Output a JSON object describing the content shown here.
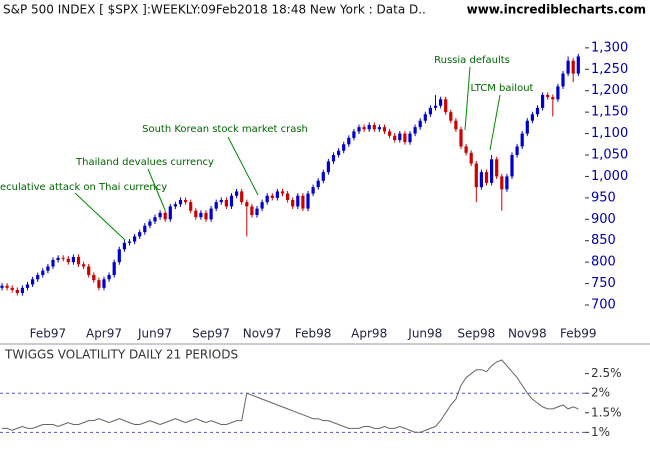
{
  "chart_data": [
    {
      "type": "candlestick",
      "title": "S&P 500 INDEX [ $SPX ]:WEEKLY:09Feb2018 18:48 New York : Data D..",
      "source": "www.incrediblecharts.com",
      "up_color": "#0000cc",
      "down_color": "#cc0000",
      "categories": [
        null,
        null,
        null,
        null,
        null,
        null,
        null,
        null,
        null,
        "Feb97",
        null,
        null,
        null,
        null,
        null,
        null,
        null,
        null,
        null,
        null,
        "Apr97",
        null,
        null,
        null,
        null,
        null,
        null,
        null,
        null,
        null,
        "Jun97",
        null,
        null,
        null,
        null,
        null,
        null,
        null,
        null,
        null,
        null,
        "Sep97",
        null,
        null,
        null,
        null,
        null,
        null,
        null,
        null,
        null,
        "Nov97",
        null,
        null,
        null,
        null,
        null,
        null,
        null,
        null,
        null,
        "Feb98",
        null,
        null,
        null,
        null,
        null,
        null,
        null,
        null,
        null,
        null,
        "Apr98",
        null,
        null,
        null,
        null,
        null,
        null,
        null,
        null,
        null,
        null,
        "Jun98",
        null,
        null,
        null,
        null,
        null,
        null,
        null,
        null,
        null,
        "Sep98",
        null,
        null,
        null,
        null,
        null,
        null,
        null,
        null,
        null,
        "Nov98",
        null,
        null,
        null,
        null,
        null,
        null,
        null,
        null,
        null,
        "Feb99"
      ],
      "open": [
        740,
        745,
        740,
        735,
        728,
        740,
        748,
        760,
        770,
        780,
        790,
        805,
        810,
        808,
        800,
        812,
        795,
        790,
        770,
        758,
        740,
        760,
        770,
        800,
        830,
        845,
        848,
        860,
        870,
        885,
        895,
        905,
        915,
        900,
        930,
        935,
        945,
        940,
        920,
        905,
        915,
        900,
        925,
        940,
        945,
        930,
        955,
        965,
        940,
        930,
        910,
        925,
        940,
        955,
        950,
        965,
        960,
        945,
        930,
        955,
        925,
        960,
        975,
        990,
        1010,
        1035,
        1050,
        1060,
        1075,
        1090,
        1105,
        1115,
        1110,
        1120,
        1110,
        1115,
        1105,
        1095,
        1085,
        1100,
        1080,
        1100,
        1115,
        1130,
        1145,
        1160,
        1165,
        1180,
        1150,
        1130,
        1110,
        1070,
        1055,
        1030,
        975,
        1010,
        985,
        1040,
        1000,
        970,
        1000,
        1050,
        1070,
        1100,
        1130,
        1145,
        1160,
        1190,
        1185,
        1180,
        1210,
        1240,
        1270,
        1240
      ],
      "high": [
        751,
        751,
        746,
        741,
        746,
        754,
        766,
        776,
        786,
        796,
        811,
        816,
        816,
        814,
        818,
        818,
        801,
        796,
        776,
        764,
        766,
        776,
        806,
        836,
        851,
        854,
        866,
        876,
        891,
        901,
        911,
        921,
        921,
        936,
        941,
        951,
        951,
        946,
        926,
        921,
        921,
        931,
        946,
        951,
        951,
        961,
        971,
        971,
        946,
        936,
        931,
        946,
        961,
        961,
        971,
        971,
        966,
        951,
        961,
        961,
        966,
        981,
        996,
        1016,
        1041,
        1056,
        1066,
        1081,
        1096,
        1111,
        1121,
        1121,
        1126,
        1126,
        1121,
        1121,
        1111,
        1101,
        1106,
        1106,
        1106,
        1121,
        1136,
        1151,
        1166,
        1190,
        1186,
        1186,
        1156,
        1136,
        1116,
        1076,
        1061,
        1036,
        1016,
        1016,
        1050,
        1046,
        1006,
        1006,
        1056,
        1076,
        1106,
        1136,
        1151,
        1166,
        1196,
        1196,
        1191,
        1216,
        1246,
        1280,
        1276,
        1286
      ],
      "low": [
        734,
        734,
        729,
        722,
        722,
        734,
        742,
        754,
        764,
        774,
        784,
        799,
        802,
        794,
        794,
        789,
        784,
        764,
        752,
        734,
        734,
        754,
        764,
        794,
        824,
        839,
        842,
        854,
        864,
        879,
        889,
        899,
        894,
        894,
        924,
        929,
        934,
        914,
        899,
        899,
        894,
        894,
        919,
        934,
        924,
        924,
        949,
        934,
        860,
        904,
        904,
        919,
        934,
        944,
        944,
        954,
        939,
        924,
        924,
        919,
        919,
        954,
        969,
        984,
        1004,
        1029,
        1044,
        1054,
        1069,
        1084,
        1099,
        1104,
        1104,
        1104,
        1104,
        1099,
        1089,
        1079,
        1079,
        1074,
        1074,
        1094,
        1109,
        1124,
        1139,
        1154,
        1159,
        1144,
        1124,
        1104,
        1064,
        1049,
        1024,
        940,
        969,
        979,
        979,
        994,
        920,
        964,
        994,
        1044,
        1064,
        1094,
        1124,
        1139,
        1154,
        1179,
        1140,
        1174,
        1204,
        1234,
        1220,
        1234
      ],
      "close": [
        745,
        740,
        735,
        728,
        740,
        748,
        760,
        770,
        780,
        790,
        805,
        810,
        808,
        800,
        812,
        795,
        790,
        770,
        758,
        740,
        760,
        770,
        800,
        830,
        845,
        848,
        860,
        870,
        885,
        895,
        905,
        915,
        900,
        930,
        935,
        945,
        940,
        920,
        905,
        915,
        900,
        925,
        940,
        945,
        930,
        955,
        965,
        940,
        930,
        910,
        925,
        940,
        955,
        950,
        965,
        960,
        945,
        930,
        955,
        925,
        960,
        975,
        990,
        1010,
        1035,
        1050,
        1060,
        1075,
        1090,
        1105,
        1115,
        1110,
        1120,
        1110,
        1115,
        1105,
        1095,
        1085,
        1100,
        1080,
        1100,
        1115,
        1130,
        1145,
        1160,
        1165,
        1180,
        1150,
        1130,
        1110,
        1070,
        1055,
        1030,
        975,
        1010,
        985,
        1040,
        1000,
        970,
        1000,
        1050,
        1070,
        1100,
        1130,
        1145,
        1160,
        1190,
        1185,
        1180,
        1210,
        1240,
        1270,
        1240,
        1280
      ],
      "ylim": [
        665,
        1365
      ],
      "yticks": [
        700,
        750,
        800,
        850,
        900,
        950,
        {
          "value": 1000,
          "label": "1,000"
        },
        {
          "value": 1050,
          "label": "1,050"
        },
        {
          "value": 1100,
          "label": "1,100"
        },
        {
          "value": 1150,
          "label": "1,150"
        },
        {
          "value": 1200,
          "label": "1,200"
        },
        {
          "value": 1250,
          "label": "1,250"
        },
        {
          "value": 1300,
          "label": "1,300"
        }
      ],
      "annotations": [
        {
          "text": "eculative attack on Thai currency"
        },
        {
          "text": "Thailand devalues currency"
        },
        {
          "text": "South Korean stock market crash"
        },
        {
          "text": "Russia defaults"
        },
        {
          "text": "LTCM bailout"
        }
      ]
    },
    {
      "type": "line",
      "title": "TWIGGS VOLATILITY DAILY 21 PERIODS",
      "color": "#666666",
      "values": [
        1.1,
        1.1,
        1.05,
        1.1,
        1.15,
        1.1,
        1.1,
        1.15,
        1.2,
        1.2,
        1.2,
        1.15,
        1.2,
        1.25,
        1.2,
        1.2,
        1.25,
        1.3,
        1.3,
        1.35,
        1.3,
        1.25,
        1.3,
        1.35,
        1.3,
        1.25,
        1.2,
        1.2,
        1.25,
        1.3,
        1.25,
        1.2,
        1.25,
        1.3,
        1.35,
        1.3,
        1.25,
        1.3,
        1.35,
        1.3,
        1.25,
        1.3,
        1.25,
        1.2,
        1.2,
        1.25,
        1.3,
        1.3,
        2.0,
        1.95,
        1.9,
        1.85,
        1.8,
        1.75,
        1.7,
        1.65,
        1.6,
        1.55,
        1.5,
        1.45,
        1.4,
        1.35,
        1.35,
        1.3,
        1.3,
        1.25,
        1.2,
        1.15,
        1.1,
        1.1,
        1.1,
        1.15,
        1.15,
        1.1,
        1.1,
        1.15,
        1.1,
        1.1,
        1.15,
        1.1,
        1.05,
        1.0,
        1.0,
        1.05,
        1.1,
        1.15,
        1.3,
        1.5,
        1.7,
        1.85,
        2.2,
        2.4,
        2.5,
        2.6,
        2.6,
        2.55,
        2.7,
        2.8,
        2.85,
        2.7,
        2.55,
        2.4,
        2.2,
        2.0,
        1.85,
        1.75,
        1.65,
        1.6,
        1.6,
        1.65,
        1.7,
        1.6,
        1.65,
        1.6
      ],
      "ylim": [
        0.6,
        2.9
      ],
      "yticks": [
        {
          "value": 1,
          "label": "1%"
        },
        {
          "value": 1.5,
          "label": "1.5%"
        },
        {
          "value": 2,
          "label": "2%"
        },
        {
          "value": 2.5,
          "label": "2.5%"
        }
      ],
      "reference_lines": [
        1,
        2
      ]
    }
  ]
}
